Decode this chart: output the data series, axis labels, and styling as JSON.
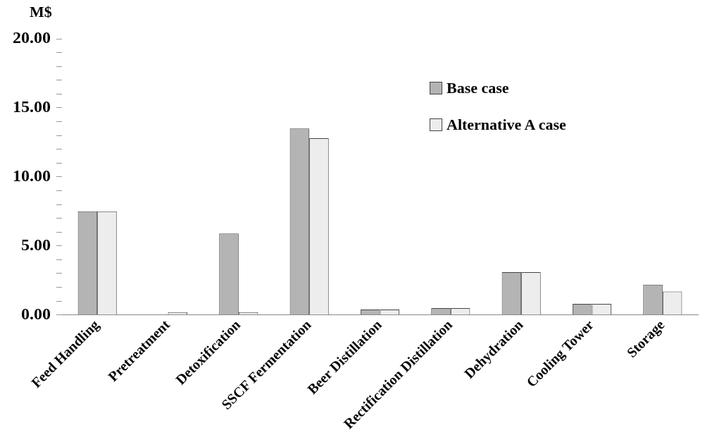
{
  "chart_data": {
    "type": "bar",
    "ylabel": "M$",
    "categories": [
      "Feed Handling",
      "Pretreatment",
      "Detoxification",
      "SSCF Fermentation",
      "Beer Distillation",
      "Rectification Distillation",
      "Dehydration",
      "Cooling Tower",
      "Storage"
    ],
    "series": [
      {
        "name": "Base case",
        "color": "#b4b4b4",
        "values": [
          7.5,
          0,
          5.9,
          13.5,
          0.4,
          0.5,
          3.1,
          0.8,
          2.2
        ]
      },
      {
        "name": "Alternative A case",
        "color": "#ededed",
        "values": [
          7.5,
          0.2,
          0.2,
          12.8,
          0.4,
          0.5,
          3.1,
          0.8,
          1.7
        ]
      }
    ],
    "ylim": [
      0,
      20
    ],
    "yticks": [
      {
        "value": 0,
        "label": "0.00"
      },
      {
        "value": 1,
        "label": null
      },
      {
        "value": 2,
        "label": null
      },
      {
        "value": 3,
        "label": null
      },
      {
        "value": 4,
        "label": null
      },
      {
        "value": 5,
        "label": "5.00"
      },
      {
        "value": 6,
        "label": null
      },
      {
        "value": 7,
        "label": null
      },
      {
        "value": 8,
        "label": null
      },
      {
        "value": 9,
        "label": null
      },
      {
        "value": 10,
        "label": "10.00"
      },
      {
        "value": 11,
        "label": null
      },
      {
        "value": 12,
        "label": null
      },
      {
        "value": 13,
        "label": null
      },
      {
        "value": 14,
        "label": null
      },
      {
        "value": 15,
        "label": "15.00"
      },
      {
        "value": 16,
        "label": null
      },
      {
        "value": 17,
        "label": null
      },
      {
        "value": 18,
        "label": null
      },
      {
        "value": 19,
        "label": null
      },
      {
        "value": 20,
        "label": "20.00"
      }
    ],
    "grid": false,
    "legend": "top right"
  }
}
